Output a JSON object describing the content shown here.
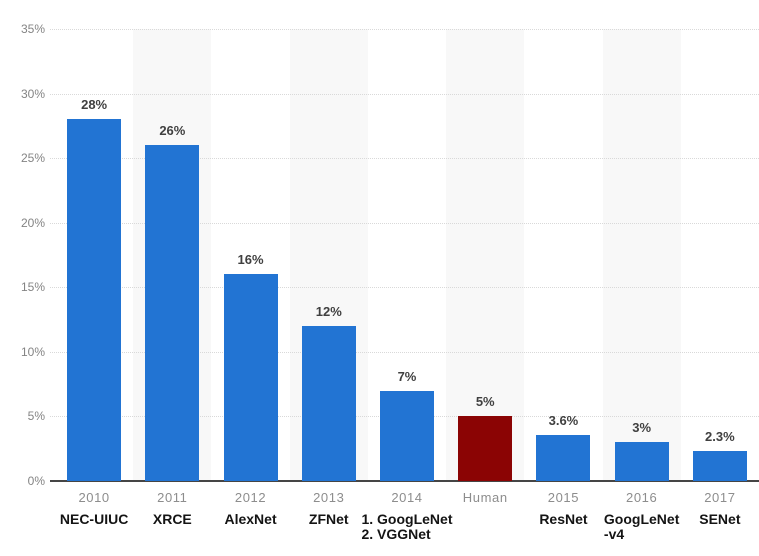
{
  "chart_data": {
    "type": "bar",
    "title": "",
    "categories": [
      "2010",
      "2011",
      "2012",
      "2013",
      "2014",
      "Human",
      "2015",
      "2016",
      "2017"
    ],
    "model_labels": [
      "NEC-UIUC",
      "XRCE",
      "AlexNet",
      "ZFNet",
      "1. GoogLeNet\n2. VGGNet",
      "",
      "ResNet",
      "GoogLeNet\n-v4",
      "SENet"
    ],
    "values": [
      28,
      26,
      16,
      12,
      7,
      5,
      3.6,
      3,
      2.3
    ],
    "value_labels": [
      "28%",
      "26%",
      "16%",
      "12%",
      "7%",
      "5%",
      "3.6%",
      "3%",
      "2.3%"
    ],
    "highlight_index": 5,
    "ylim": [
      0,
      35
    ],
    "ytick_values": [
      35,
      30,
      25,
      20,
      15,
      10,
      5,
      0
    ],
    "ytick_labels": [
      "35%",
      "30%",
      "25%",
      "20%",
      "15%",
      "10%",
      "5%",
      "0%"
    ],
    "grid": "horizontal-dotted",
    "legend": "none",
    "plot_bands_alternating": true,
    "colors": {
      "bar": "#2274d3",
      "highlight_bar": "#8b0404",
      "plot_band": "#f8f8f8",
      "gridline": "#d9d9d9",
      "axis_line": "#454545",
      "ytick_text": "#848484",
      "year_text": "#8d8d8d",
      "value_text": "#404040",
      "model_text": "#141414"
    }
  }
}
